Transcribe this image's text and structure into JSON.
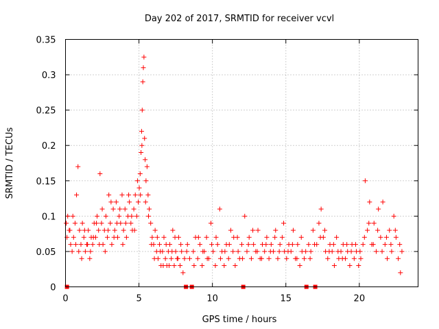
{
  "chart_data": {
    "type": "scatter",
    "title": "Day 202 of 2017, SRMTID for receiver vcvl",
    "xlabel": "GPS time / hours",
    "ylabel": "SRMTID / TECUs",
    "xlim": [
      0,
      24
    ],
    "ylim": [
      0,
      0.35
    ],
    "xticks": [
      0,
      5,
      10,
      15,
      20
    ],
    "xtick_labels": [
      "0",
      "5",
      "10",
      "15",
      "20"
    ],
    "yticks": [
      0,
      0.05,
      0.1,
      0.15,
      0.2,
      0.25,
      0.3,
      0.35
    ],
    "ytick_labels": [
      "0",
      "0.05",
      "0.1",
      "0.15",
      "0.2",
      "0.25",
      "0.3",
      "0.35"
    ],
    "grid": true,
    "marker": "+",
    "color": "#ff0000",
    "data_gap_markers_x": [
      0.1,
      8.2,
      8.6,
      12.1,
      16.4,
      17.0
    ],
    "series": [
      {
        "name": "SRMTID",
        "points": [
          [
            0.05,
            0.09
          ],
          [
            0.15,
            0.1
          ],
          [
            0.25,
            0.08
          ],
          [
            0.35,
            0.06
          ],
          [
            0.45,
            0.05
          ],
          [
            0.55,
            0.07
          ],
          [
            0.65,
            0.09
          ],
          [
            0.75,
            0.13
          ],
          [
            0.85,
            0.17
          ],
          [
            0.95,
            0.08
          ],
          [
            1.05,
            0.06
          ],
          [
            1.15,
            0.09
          ],
          [
            1.25,
            0.07
          ],
          [
            1.35,
            0.05
          ],
          [
            1.45,
            0.06
          ],
          [
            1.55,
            0.08
          ],
          [
            1.65,
            0.04
          ],
          [
            1.75,
            0.07
          ],
          [
            1.85,
            0.06
          ],
          [
            1.95,
            0.09
          ],
          [
            2.05,
            0.07
          ],
          [
            2.15,
            0.1
          ],
          [
            2.25,
            0.08
          ],
          [
            2.35,
            0.16
          ],
          [
            2.45,
            0.09
          ],
          [
            2.55,
            0.06
          ],
          [
            2.65,
            0.08
          ],
          [
            2.75,
            0.1
          ],
          [
            2.85,
            0.07
          ],
          [
            2.95,
            0.13
          ],
          [
            3.05,
            0.09
          ],
          [
            3.15,
            0.06
          ],
          [
            3.25,
            0.11
          ],
          [
            3.35,
            0.08
          ],
          [
            3.45,
            0.12
          ],
          [
            3.55,
            0.07
          ],
          [
            3.65,
            0.1
          ],
          [
            3.75,
            0.09
          ],
          [
            3.85,
            0.13
          ],
          [
            3.95,
            0.08
          ],
          [
            4.05,
            0.11
          ],
          [
            4.15,
            0.07
          ],
          [
            4.25,
            0.1
          ],
          [
            4.35,
            0.12
          ],
          [
            4.45,
            0.09
          ],
          [
            4.55,
            0.08
          ],
          [
            4.65,
            0.11
          ],
          [
            4.75,
            0.13
          ],
          [
            4.85,
            0.1
          ],
          [
            4.95,
            0.12
          ],
          [
            5.02,
            0.14
          ],
          [
            5.08,
            0.16
          ],
          [
            5.14,
            0.19
          ],
          [
            5.18,
            0.22
          ],
          [
            5.22,
            0.25
          ],
          [
            5.26,
            0.29
          ],
          [
            5.3,
            0.31
          ],
          [
            5.34,
            0.325
          ],
          [
            5.38,
            0.21
          ],
          [
            5.42,
            0.18
          ],
          [
            5.48,
            0.15
          ],
          [
            5.55,
            0.17
          ],
          [
            5.62,
            0.13
          ],
          [
            5.7,
            0.11
          ],
          [
            5.8,
            0.09
          ],
          [
            5.9,
            0.07
          ],
          [
            6.0,
            0.06
          ],
          [
            6.1,
            0.08
          ],
          [
            6.2,
            0.05
          ],
          [
            6.3,
            0.04
          ],
          [
            6.4,
            0.06
          ],
          [
            6.5,
            0.03
          ],
          [
            6.6,
            0.05
          ],
          [
            6.7,
            0.07
          ],
          [
            6.8,
            0.04
          ],
          [
            6.9,
            0.03
          ],
          [
            7.0,
            0.05
          ],
          [
            7.1,
            0.06
          ],
          [
            7.2,
            0.04
          ],
          [
            7.3,
            0.08
          ],
          [
            7.4,
            0.03
          ],
          [
            7.5,
            0.05
          ],
          [
            7.6,
            0.04
          ],
          [
            7.7,
            0.07
          ],
          [
            7.8,
            0.03
          ],
          [
            7.9,
            0.05
          ],
          [
            8.0,
            0.02
          ],
          [
            8.1,
            0.04
          ],
          [
            8.3,
            0.06
          ],
          [
            8.45,
            0.04
          ],
          [
            8.7,
            0.05
          ],
          [
            8.85,
            0.07
          ],
          [
            9.0,
            0.04
          ],
          [
            9.15,
            0.06
          ],
          [
            9.3,
            0.03
          ],
          [
            9.45,
            0.05
          ],
          [
            9.6,
            0.07
          ],
          [
            9.75,
            0.04
          ],
          [
            9.9,
            0.09
          ],
          [
            10.05,
            0.05
          ],
          [
            10.2,
            0.03
          ],
          [
            10.35,
            0.06
          ],
          [
            10.5,
            0.11
          ],
          [
            10.65,
            0.05
          ],
          [
            10.8,
            0.03
          ],
          [
            10.95,
            0.06
          ],
          [
            11.1,
            0.04
          ],
          [
            11.25,
            0.08
          ],
          [
            11.4,
            0.05
          ],
          [
            11.55,
            0.03
          ],
          [
            11.7,
            0.07
          ],
          [
            11.85,
            0.04
          ],
          [
            12.0,
            0.06
          ],
          [
            12.2,
            0.1
          ],
          [
            12.35,
            0.05
          ],
          [
            12.5,
            0.07
          ],
          [
            12.65,
            0.04
          ],
          [
            12.8,
            0.06
          ],
          [
            12.95,
            0.05
          ],
          [
            13.1,
            0.08
          ],
          [
            13.25,
            0.04
          ],
          [
            13.4,
            0.06
          ],
          [
            13.55,
            0.05
          ],
          [
            13.7,
            0.07
          ],
          [
            13.85,
            0.04
          ],
          [
            14.0,
            0.06
          ],
          [
            14.15,
            0.05
          ],
          [
            14.3,
            0.08
          ],
          [
            14.45,
            0.04
          ],
          [
            14.6,
            0.06
          ],
          [
            14.75,
            0.07
          ],
          [
            14.9,
            0.05
          ],
          [
            15.05,
            0.04
          ],
          [
            15.2,
            0.06
          ],
          [
            15.35,
            0.05
          ],
          [
            15.5,
            0.08
          ],
          [
            15.65,
            0.04
          ],
          [
            15.8,
            0.06
          ],
          [
            15.95,
            0.03
          ],
          [
            16.1,
            0.05
          ],
          [
            16.25,
            0.04
          ],
          [
            16.55,
            0.06
          ],
          [
            16.7,
            0.05
          ],
          [
            16.85,
            0.08
          ],
          [
            17.1,
            0.06
          ],
          [
            17.25,
            0.09
          ],
          [
            17.4,
            0.11
          ],
          [
            17.55,
            0.07
          ],
          [
            17.7,
            0.05
          ],
          [
            17.85,
            0.04
          ],
          [
            18.0,
            0.06
          ],
          [
            18.15,
            0.05
          ],
          [
            18.3,
            0.03
          ],
          [
            18.45,
            0.07
          ],
          [
            18.6,
            0.04
          ],
          [
            18.75,
            0.05
          ],
          [
            18.9,
            0.06
          ],
          [
            19.05,
            0.04
          ],
          [
            19.2,
            0.05
          ],
          [
            19.35,
            0.03
          ],
          [
            19.5,
            0.06
          ],
          [
            19.65,
            0.04
          ],
          [
            19.8,
            0.05
          ],
          [
            19.95,
            0.03
          ],
          [
            20.1,
            0.04
          ],
          [
            20.25,
            0.06
          ],
          [
            20.4,
            0.15
          ],
          [
            20.55,
            0.08
          ],
          [
            20.7,
            0.12
          ],
          [
            20.85,
            0.06
          ],
          [
            21.0,
            0.09
          ],
          [
            21.15,
            0.05
          ],
          [
            21.3,
            0.11
          ],
          [
            21.45,
            0.07
          ],
          [
            21.6,
            0.12
          ],
          [
            21.75,
            0.06
          ],
          [
            21.9,
            0.04
          ],
          [
            22.05,
            0.08
          ],
          [
            22.2,
            0.05
          ],
          [
            22.35,
            0.1
          ],
          [
            22.5,
            0.07
          ],
          [
            22.65,
            0.04
          ],
          [
            22.8,
            0.02
          ],
          [
            0.1,
            0.07
          ],
          [
            0.3,
            0.08
          ],
          [
            0.5,
            0.1
          ],
          [
            0.7,
            0.06
          ],
          [
            0.9,
            0.05
          ],
          [
            1.1,
            0.04
          ],
          [
            1.3,
            0.08
          ],
          [
            1.5,
            0.06
          ],
          [
            1.7,
            0.05
          ],
          [
            1.9,
            0.07
          ],
          [
            2.1,
            0.09
          ],
          [
            2.3,
            0.06
          ],
          [
            2.5,
            0.11
          ],
          [
            2.7,
            0.05
          ],
          [
            2.9,
            0.08
          ],
          [
            3.1,
            0.12
          ],
          [
            3.3,
            0.07
          ],
          [
            3.5,
            0.09
          ],
          [
            3.7,
            0.11
          ],
          [
            3.9,
            0.06
          ],
          [
            4.1,
            0.09
          ],
          [
            4.3,
            0.13
          ],
          [
            4.5,
            0.1
          ],
          [
            4.7,
            0.08
          ],
          [
            4.9,
            0.15
          ],
          [
            5.1,
            0.13
          ],
          [
            5.2,
            0.2
          ],
          [
            5.45,
            0.12
          ],
          [
            5.65,
            0.1
          ],
          [
            5.85,
            0.06
          ],
          [
            6.05,
            0.04
          ],
          [
            6.25,
            0.07
          ],
          [
            6.45,
            0.05
          ],
          [
            6.65,
            0.03
          ],
          [
            6.85,
            0.06
          ],
          [
            7.05,
            0.03
          ],
          [
            7.25,
            0.05
          ],
          [
            7.45,
            0.07
          ],
          [
            7.65,
            0.04
          ],
          [
            7.85,
            0.06
          ],
          [
            8.25,
            0.05
          ],
          [
            8.75,
            0.03
          ],
          [
            9.05,
            0.07
          ],
          [
            9.35,
            0.05
          ],
          [
            9.65,
            0.04
          ],
          [
            9.95,
            0.06
          ],
          [
            10.25,
            0.07
          ],
          [
            10.55,
            0.04
          ],
          [
            10.85,
            0.05
          ],
          [
            11.15,
            0.06
          ],
          [
            11.45,
            0.07
          ],
          [
            11.75,
            0.05
          ],
          [
            12.05,
            0.04
          ],
          [
            12.45,
            0.06
          ],
          [
            12.75,
            0.08
          ],
          [
            13.05,
            0.05
          ],
          [
            13.35,
            0.04
          ],
          [
            13.65,
            0.06
          ],
          [
            13.95,
            0.05
          ],
          [
            14.25,
            0.07
          ],
          [
            14.55,
            0.05
          ],
          [
            14.85,
            0.09
          ],
          [
            15.15,
            0.05
          ],
          [
            15.45,
            0.06
          ],
          [
            15.75,
            0.04
          ],
          [
            16.05,
            0.07
          ],
          [
            16.35,
            0.05
          ],
          [
            16.65,
            0.04
          ],
          [
            16.95,
            0.06
          ],
          [
            17.35,
            0.07
          ],
          [
            17.65,
            0.08
          ],
          [
            17.95,
            0.05
          ],
          [
            18.25,
            0.06
          ],
          [
            18.55,
            0.05
          ],
          [
            18.85,
            0.04
          ],
          [
            19.15,
            0.06
          ],
          [
            19.45,
            0.05
          ],
          [
            19.75,
            0.06
          ],
          [
            20.05,
            0.05
          ],
          [
            20.35,
            0.07
          ],
          [
            20.65,
            0.09
          ],
          [
            20.95,
            0.06
          ],
          [
            21.25,
            0.08
          ],
          [
            21.55,
            0.05
          ],
          [
            21.85,
            0.07
          ],
          [
            22.15,
            0.06
          ],
          [
            22.45,
            0.08
          ],
          [
            22.75,
            0.06
          ],
          [
            22.9,
            0.05
          ]
        ]
      }
    ]
  }
}
